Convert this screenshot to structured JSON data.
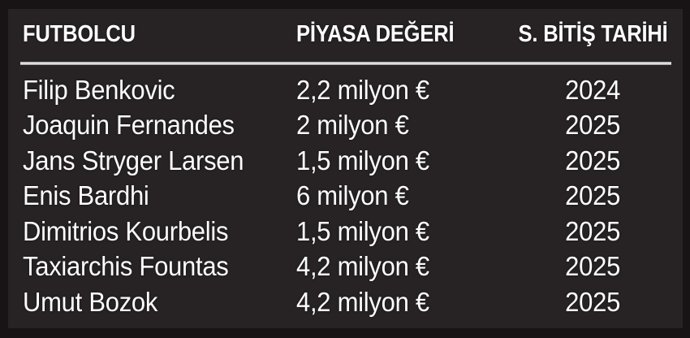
{
  "colors": {
    "background_outer": "#181415",
    "background_panel": "#272324",
    "text": "#fdfdfd",
    "divider": "#e0e0e0"
  },
  "table": {
    "headers": {
      "player": "FUTBOLCU",
      "market_value": "PİYASA DEĞERİ",
      "contract_end": "S. BİTİŞ TARİHİ"
    },
    "rows": [
      {
        "player": "Filip Benkovic",
        "value": "2,2 milyon €",
        "end": "2024"
      },
      {
        "player": "Joaquin Fernandes",
        "value": "2 milyon €",
        "end": "2025"
      },
      {
        "player": "Jans Stryger Larsen",
        "value": "1,5 milyon €",
        "end": "2025"
      },
      {
        "player": "Enis Bardhi",
        "value": "6 milyon €",
        "end": "2025"
      },
      {
        "player": "Dimitrios Kourbelis",
        "value": "1,5 milyon €",
        "end": "2025"
      },
      {
        "player": "Taxiarchis Fountas",
        "value": "4,2 milyon €",
        "end": "2025"
      },
      {
        "player": "Umut Bozok",
        "value": "4,2 milyon €",
        "end": "2025"
      }
    ]
  },
  "chart_data": {
    "type": "table",
    "title": "",
    "columns": [
      "FUTBOLCU",
      "PİYASA DEĞERİ",
      "S. BİTİŞ TARİHİ"
    ],
    "rows": [
      [
        "Filip Benkovic",
        "2,2 milyon €",
        "2024"
      ],
      [
        "Joaquin Fernandes",
        "2 milyon €",
        "2025"
      ],
      [
        "Jans Stryger Larsen",
        "1,5 milyon €",
        "2025"
      ],
      [
        "Enis Bardhi",
        "6 milyon €",
        "2025"
      ],
      [
        "Dimitrios Kourbelis",
        "1,5 milyon €",
        "2025"
      ],
      [
        "Taxiarchis Fountas",
        "4,2 milyon €",
        "2025"
      ],
      [
        "Umut Bozok",
        "4,2 milyon €",
        "2025"
      ]
    ],
    "market_values_million_eur": [
      2.2,
      2,
      1.5,
      6,
      1.5,
      4.2,
      4.2
    ],
    "contract_end_years": [
      2024,
      2025,
      2025,
      2025,
      2025,
      2025,
      2025
    ]
  }
}
